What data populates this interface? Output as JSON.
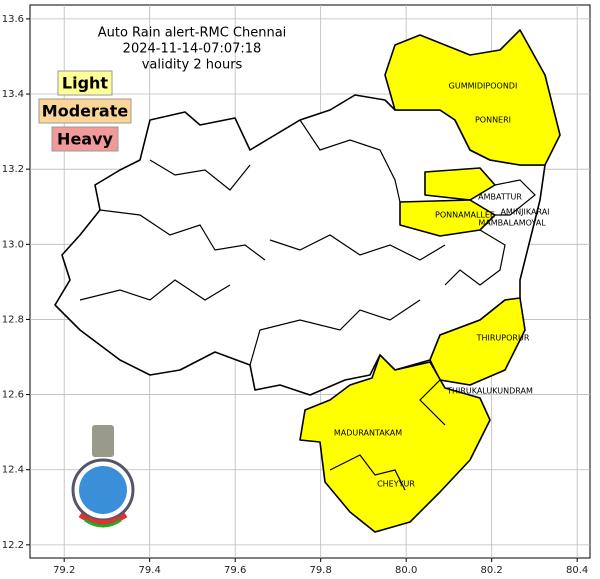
{
  "map": {
    "title": [
      "Auto Rain alert-RMC Chennai",
      "2024-11-14-07:07:18",
      "validity 2 hours"
    ],
    "legend": [
      "Light",
      "Moderate",
      "Heavy"
    ],
    "legend_colors": [
      "#ffff99",
      "#fcd699",
      "#f29a9a"
    ],
    "region_color": "#ffff00",
    "xlim": [
      79.12,
      80.43
    ],
    "ylim": [
      12.165,
      13.637
    ],
    "xticks": [
      79.2,
      79.4,
      79.6,
      79.8,
      {
        "value": 80,
        "label": "80.0"
      },
      80.2,
      80.4
    ],
    "yticks": [
      12.2,
      12.4,
      12.6,
      12.8,
      {
        "value": 13,
        "label": "13.0"
      },
      13.2,
      13.4,
      13.6
    ],
    "grid": true,
    "places": [
      "GUMMIDIPOONDI",
      "PONNERI",
      "AMBATTUR",
      "PONNAMALLEE",
      "AMINJIKARAI",
      "MAMBALAMOYAL",
      "THIRUPORUR",
      "THIRUKALUKUNDRAM",
      "MADURANTAKAM",
      "CHEYYUR"
    ]
  }
}
